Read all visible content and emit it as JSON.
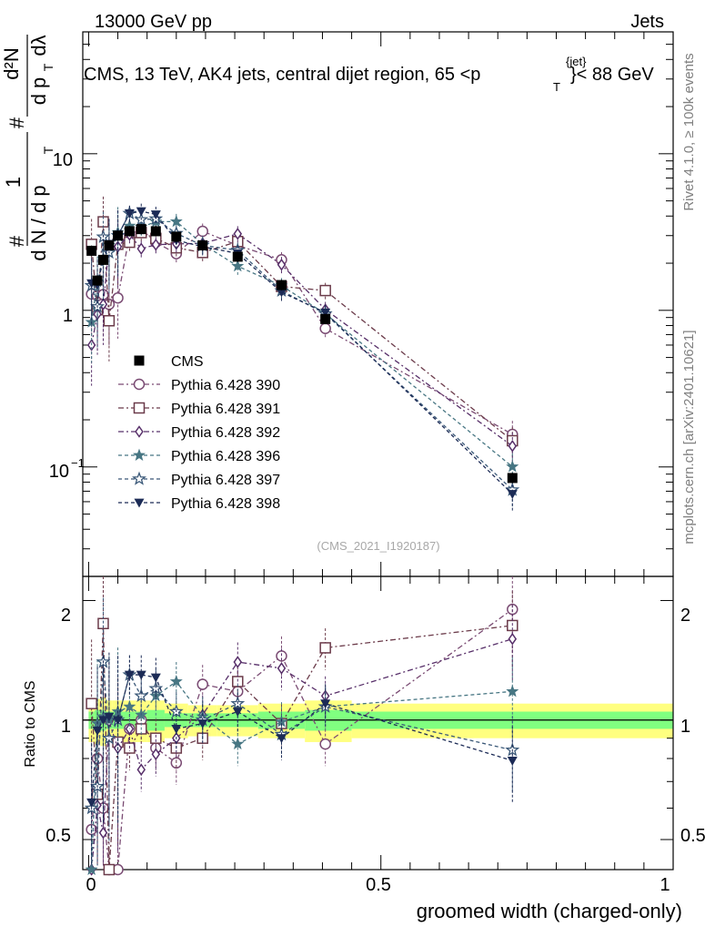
{
  "header": {
    "left": "13000 GeV pp",
    "right": "Jets"
  },
  "plot_title": {
    "prefix": "CMS, 13 TeV, AK4 jets, central dijet region, 65 <p",
    "sup": "{jet}",
    "sub": "T",
    "suffix": "}< 88 GeV"
  },
  "side_labels": {
    "rivet": "Rivet 4.1.0, ≥ 100k events",
    "mcplots": "mcplots.cern.ch [arXiv:2401.10621]"
  },
  "watermark": "(CMS_2021_I1920187)",
  "main_ylabel": {
    "hash1": "#",
    "one": "1",
    "dN": "d N / d p",
    "dNsub": "T",
    "hash2": "#",
    "d2N": "d²N",
    "dpT": "d p",
    "dpTsub": "T",
    "dlambda": "dλ"
  },
  "ratio_ylabel": "Ratio to CMS",
  "xlabel": "groomed width (charged-only)",
  "main_ticks": [
    "10",
    "1",
    "10",
    "−1"
  ],
  "ratio_ticks": [
    "2",
    "1",
    "0.5"
  ],
  "x_ticks": [
    "0",
    "0.5",
    "1"
  ],
  "legend_data_label": "CMS",
  "chart_data": {
    "type": "line",
    "xlabel": "groomed width (charged-only)",
    "ylabel_main": "1/(dN/dpT) d2N/(dpT dlambda)",
    "ylabel_ratio": "Ratio to CMS",
    "xlim": [
      -0.01,
      1.0
    ],
    "ylim_main": [
      0.02,
      60
    ],
    "ylim_ratio": [
      0.42,
      2.3
    ],
    "ratio_band_x_edges": [
      0.0,
      0.01,
      0.02,
      0.03,
      0.04,
      0.06,
      0.08,
      0.1,
      0.13,
      0.17,
      0.22,
      0.29,
      0.37,
      0.45,
      1.0
    ],
    "ratio_band_inner": [
      0.05,
      0.06,
      0.06,
      0.05,
      0.05,
      0.05,
      0.05,
      0.06,
      0.04,
      0.04,
      0.04,
      0.05,
      0.06,
      0.05
    ],
    "ratio_band_outer": [
      0.12,
      0.13,
      0.14,
      0.12,
      0.12,
      0.12,
      0.12,
      0.12,
      0.1,
      0.09,
      0.09,
      0.1,
      0.12,
      0.1
    ],
    "data": {
      "name": "CMS",
      "x": [
        0.005,
        0.015,
        0.025,
        0.035,
        0.05,
        0.07,
        0.09,
        0.115,
        0.15,
        0.195,
        0.255,
        0.33,
        0.405,
        0.725
      ],
      "y": [
        2.4,
        1.55,
        2.1,
        2.6,
        3.0,
        3.2,
        3.3,
        3.2,
        2.95,
        2.6,
        2.2,
        1.45,
        0.88,
        0.085
      ]
    },
    "series": [
      {
        "name": "Pythia 6.428 390",
        "color": "#7a4b73",
        "marker": "circle-open",
        "dash": "6 3 2 3",
        "ratio": [
          0.53,
          0.8,
          0.6,
          0.42,
          0.4,
          0.95,
          1.0,
          0.85,
          0.78,
          1.23,
          1.18,
          1.45,
          0.87,
          1.9
        ]
      },
      {
        "name": "Pythia 6.428 391",
        "color": "#6b3b4a",
        "marker": "square-open",
        "dash": "6 3 2 3",
        "ratio": [
          1.1,
          0.65,
          1.75,
          0.33,
          0.88,
          0.85,
          0.95,
          0.9,
          0.85,
          0.9,
          1.25,
          0.98,
          1.52,
          1.73
        ]
      },
      {
        "name": "Pythia 6.428 392",
        "color": "#58306a",
        "marker": "diamond-open",
        "dash": "6 3 2 3",
        "ratio": [
          0.25,
          0.61,
          0.52,
          0.99,
          0.85,
          0.95,
          0.75,
          0.82,
          0.9,
          1.03,
          1.4,
          1.35,
          1.15,
          1.6
        ]
      },
      {
        "name": "Pythia 6.428 396",
        "color": "#477683",
        "marker": "star-filled",
        "dash": "4 3",
        "ratio": [
          0.35,
          0.98,
          1.02,
          1.0,
          1.05,
          1.08,
          1.03,
          1.15,
          1.25,
          1.02,
          0.87,
          0.99,
          1.08,
          1.18
        ]
      },
      {
        "name": "Pythia 6.428 397",
        "color": "#3a5878",
        "marker": "star-open",
        "dash": "4 3",
        "ratio": [
          0.6,
          0.68,
          1.4,
          0.9,
          1.0,
          1.3,
          1.15,
          1.2,
          1.05,
          1.0,
          1.1,
          0.92,
          1.08,
          0.84
        ]
      },
      {
        "name": "Pythia 6.428 398",
        "color": "#1c2b56",
        "marker": "triangle-down-filled",
        "dash": "4 3",
        "ratio": [
          0.62,
          0.94,
          1.0,
          1.02,
          1.0,
          1.3,
          1.3,
          1.28,
          0.95,
          0.98,
          1.05,
          0.9,
          1.1,
          0.79
        ]
      }
    ]
  }
}
